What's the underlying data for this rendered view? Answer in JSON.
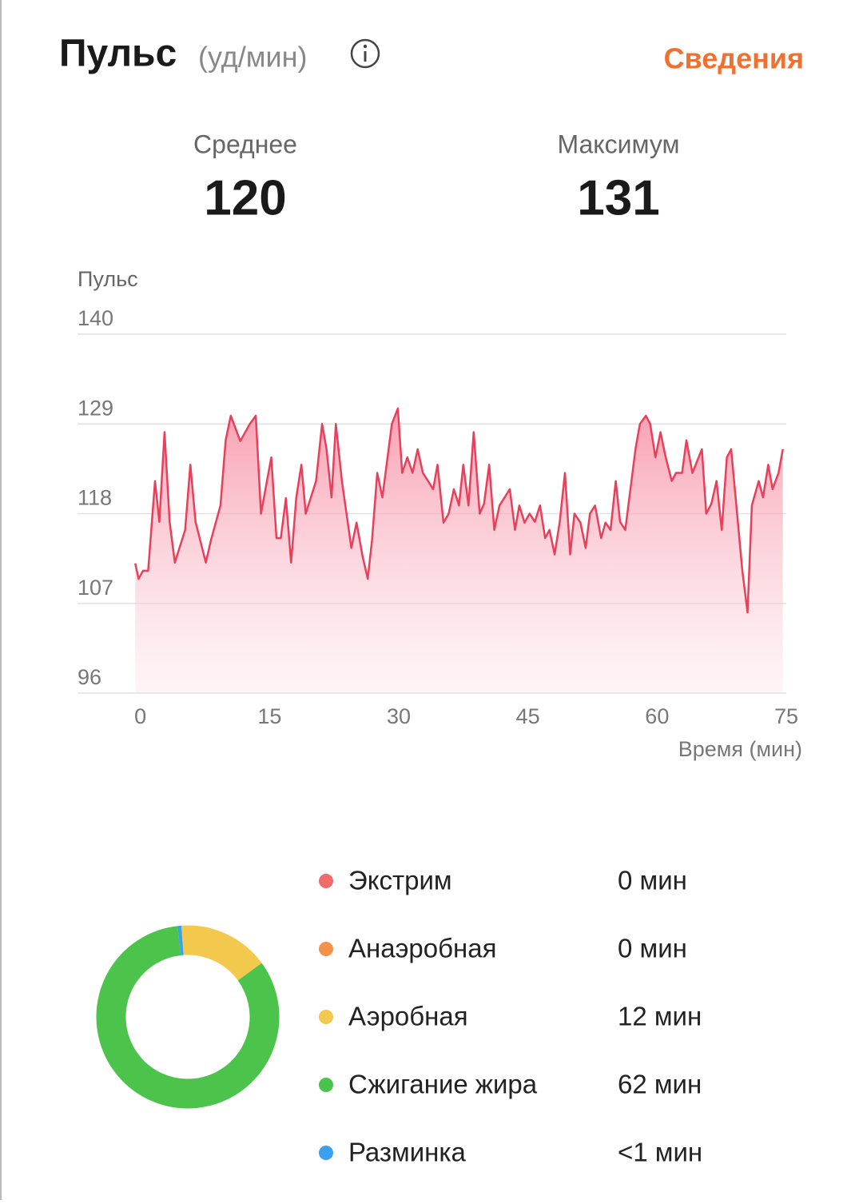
{
  "header": {
    "title": "Пульс",
    "unit": "(уд/мин)",
    "link": "Сведения"
  },
  "stats": [
    {
      "label": "Среднее",
      "value": 120
    },
    {
      "label": "Максимум",
      "value": 131
    }
  ],
  "chart_data": [
    {
      "type": "area",
      "y_label": "Пульс",
      "x_label": "Время (мин)",
      "color": "#e8405a",
      "x": [
        -0.6,
        -0.2,
        0.3,
        0.9,
        1.7,
        2.2,
        2.8,
        3.4,
        4.0,
        5.2,
        5.8,
        6.4,
        7.6,
        8.2,
        9.3,
        9.9,
        10.5,
        11.6,
        12.7,
        13.4,
        14.0,
        15.2,
        15.8,
        16.3,
        16.9,
        17.5,
        18.1,
        18.7,
        19.2,
        20.4,
        21.1,
        21.6,
        22.2,
        22.7,
        23.4,
        24.5,
        25.1,
        25.8,
        26.4,
        26.9,
        27.5,
        28.1,
        29.2,
        29.9,
        30.4,
        31.0,
        31.6,
        32.2,
        32.8,
        33.4,
        34.0,
        34.5,
        35.2,
        35.8,
        36.4,
        37.0,
        37.5,
        38.1,
        38.7,
        39.4,
        39.9,
        40.5,
        41.1,
        41.7,
        42.9,
        43.5,
        44.0,
        44.6,
        45.2,
        45.8,
        46.4,
        47.0,
        47.5,
        48.1,
        48.7,
        49.3,
        49.9,
        50.4,
        51.1,
        51.7,
        52.2,
        52.8,
        53.5,
        54.0,
        54.6,
        55.2,
        55.7,
        56.3,
        57.5,
        58.0,
        58.7,
        59.2,
        59.8,
        60.4,
        61.0,
        61.7,
        62.2,
        62.9,
        63.4,
        64.1,
        65.2,
        65.7,
        66.3,
        66.9,
        67.5,
        68.1,
        68.6,
        69.2,
        69.9,
        70.5,
        71.0,
        71.8,
        72.3,
        72.9,
        73.4,
        74.1,
        74.6
      ],
      "values": [
        111.9,
        110,
        111,
        111,
        122,
        117,
        128,
        117,
        112,
        116,
        124,
        117,
        112,
        114.8,
        119,
        127,
        130,
        126.9,
        129,
        130,
        118,
        124.9,
        115,
        115,
        119.9,
        112,
        120,
        124,
        118,
        122,
        129,
        126,
        120,
        129,
        122,
        113.8,
        116.9,
        112.8,
        110,
        114.8,
        123,
        120,
        129,
        130.9,
        123,
        124.9,
        123,
        125.9,
        123,
        122,
        121,
        124,
        116.9,
        118,
        121,
        119,
        124,
        119,
        128,
        118,
        119.2,
        124,
        116,
        119,
        121,
        116,
        119,
        116.9,
        118,
        117,
        119,
        115,
        116,
        113,
        117,
        123,
        113,
        118,
        116.9,
        113.8,
        118,
        119,
        115,
        116.9,
        116,
        122,
        117,
        116,
        126,
        129,
        130,
        129,
        124.9,
        128,
        124.9,
        122,
        123,
        123,
        127,
        123,
        125.9,
        118,
        119.2,
        122,
        116,
        124.9,
        125.9,
        119,
        111,
        105.9,
        119,
        122,
        120,
        124,
        121,
        123,
        125.9
      ],
      "xlim": [
        -7.3,
        75
      ],
      "xticks": [
        0,
        15,
        30,
        45,
        60,
        75
      ],
      "ylim": [
        96,
        140
      ],
      "yticks": [
        96,
        107,
        118,
        129,
        140
      ],
      "grid": true
    },
    {
      "type": "donut",
      "categories": [
        "Экстрим",
        "Анаэробная",
        "Аэробная",
        "Сжигание жира",
        "Разминка"
      ],
      "values": [
        0,
        0,
        12,
        62,
        0.5
      ],
      "value_labels": [
        "0 мин",
        "0 мин",
        "12 мин",
        "62 мин",
        "<1 мин"
      ],
      "colors": [
        "#f26b6b",
        "#f5924a",
        "#f2c94c",
        "#4cc44c",
        "#3aa0f0"
      ]
    }
  ]
}
